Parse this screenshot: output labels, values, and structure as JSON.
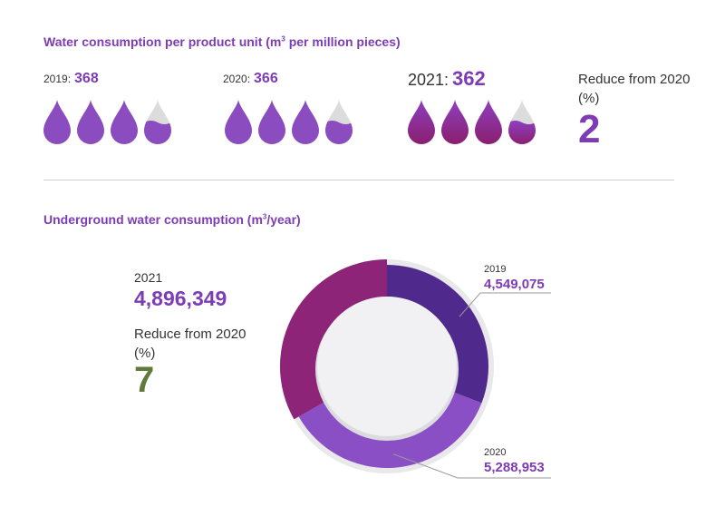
{
  "section1": {
    "title": "Water consumption per product unit (m",
    "title_sup": "3",
    "title_end": " per million pieces)",
    "years": [
      {
        "label": "2019:",
        "value": "368"
      },
      {
        "label": "2020:",
        "value": "366"
      },
      {
        "label": "2021:",
        "value": "362"
      }
    ],
    "reduce_label_1": "Reduce from 2020",
    "reduce_label_2": "(%)",
    "reduce_value": "2"
  },
  "section2": {
    "title": "Underground water consumption (m",
    "title_sup": "3",
    "title_end": "/year)",
    "reduce_label_1": "Reduce from 2020",
    "reduce_label_2": "(%)",
    "reduce_value": "7"
  },
  "colors": {
    "accent": "#7d3cb5",
    "drop_light": "#8b4cc0",
    "drop_dark": "#8a1f6e",
    "seg_2019": "#4f2a8c",
    "seg_2020": "#8a4fc4",
    "seg_2021": "#8e2478"
  },
  "chart_data": {
    "type": "pie",
    "title": "Underground water consumption (m3/year)",
    "categories": [
      "2019",
      "2020",
      "2021"
    ],
    "values": [
      4549075,
      5288953,
      4896349
    ],
    "value_labels": [
      "4,549,075",
      "5,288,953",
      "4,896,349"
    ]
  }
}
